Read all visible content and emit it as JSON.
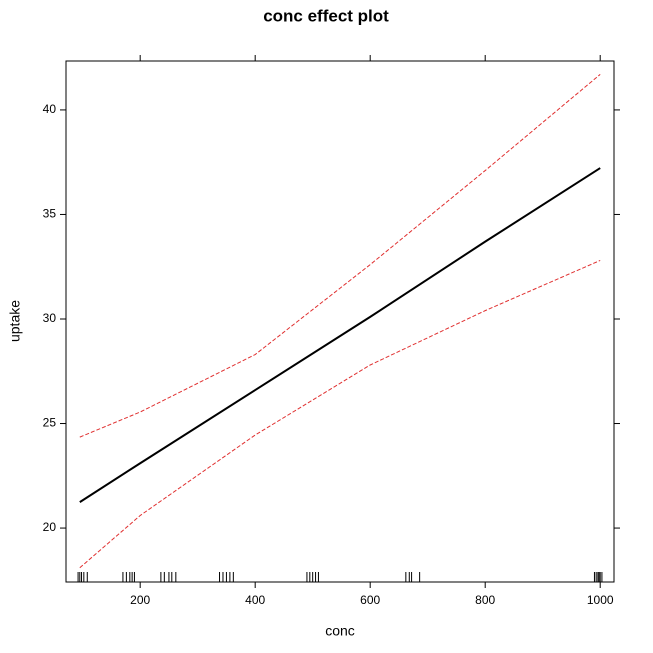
{
  "chart_data": {
    "type": "line",
    "title": "conc effect plot",
    "xlabel": "conc",
    "ylabel": "uptake",
    "x": [
      95,
      200,
      400,
      600,
      800,
      1000
    ],
    "series": [
      {
        "color": "#000000",
        "dash": false,
        "width": 2,
        "values": [
          21.24,
          23.1,
          26.6,
          30.1,
          33.7,
          37.22
        ]
      },
      {
        "color": "#e03030",
        "dash": true,
        "width": 1,
        "values": [
          18.1,
          20.6,
          24.45,
          27.8,
          30.4,
          32.8
        ]
      },
      {
        "color": "#e03030",
        "dash": true,
        "width": 1,
        "values": [
          24.35,
          25.55,
          28.3,
          32.6,
          37.1,
          41.7
        ]
      }
    ],
    "rug": [
      92,
      95,
      98,
      102,
      108,
      170,
      176,
      182,
      186,
      190,
      236,
      242,
      250,
      255,
      262,
      338,
      344,
      350,
      356,
      362,
      490,
      495,
      500,
      505,
      510,
      662,
      668,
      672,
      686,
      990,
      993,
      996,
      998,
      1000,
      1003
    ],
    "xlim": [
      71,
      1024
    ],
    "ylim": [
      17.42,
      42.34
    ],
    "xticks": [
      200,
      400,
      600,
      800,
      1000
    ],
    "yticks": [
      20,
      25,
      30,
      35,
      40
    ]
  }
}
